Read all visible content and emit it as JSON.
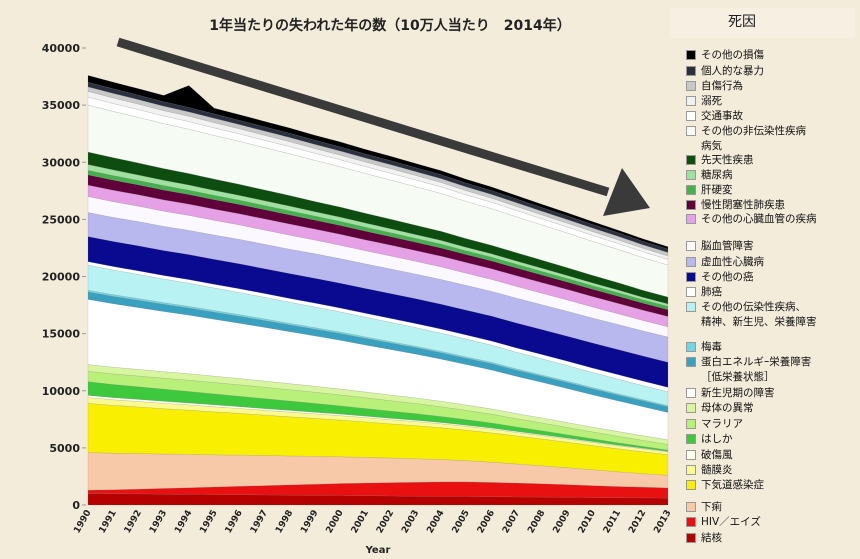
{
  "chart_data": {
    "type": "area",
    "stacked": true,
    "title": "1年当たりの失われた年の数（10万人当たり　2014年）",
    "legend_title": "死因",
    "x_label": "Year",
    "categories": [
      "1990",
      "1991",
      "1992",
      "1993",
      "1994",
      "1995",
      "1996",
      "1997",
      "1998",
      "1999",
      "2000",
      "2001",
      "2002",
      "2003",
      "2004",
      "2005",
      "2006",
      "2007",
      "2008",
      "2009",
      "2010",
      "2011",
      "2012",
      "2013"
    ],
    "ylim": [
      0,
      40000
    ],
    "yticks": [
      0,
      5000,
      10000,
      15000,
      20000,
      25000,
      30000,
      35000,
      40000
    ],
    "grid": false,
    "series": [
      {
        "name": "結核",
        "color": "#b40000",
        "values": [
          1000,
          980,
          970,
          950,
          930,
          910,
          900,
          880,
          860,
          840,
          830,
          810,
          790,
          770,
          760,
          740,
          720,
          700,
          690,
          670,
          650,
          630,
          620,
          600
        ]
      },
      {
        "name": "HIV／エイズ",
        "color": "#e81010",
        "values": [
          300,
          350,
          420,
          500,
          580,
          660,
          740,
          820,
          900,
          980,
          1050,
          1110,
          1170,
          1220,
          1260,
          1280,
          1260,
          1220,
          1170,
          1110,
          1050,
          990,
          940,
          900
        ]
      },
      {
        "name": "下痢",
        "color": "#f7c9a8",
        "values": [
          3300,
          3200,
          3110,
          3010,
          2920,
          2820,
          2730,
          2630,
          2530,
          2440,
          2340,
          2250,
          2150,
          2060,
          1960,
          1860,
          1770,
          1670,
          1580,
          1480,
          1390,
          1290,
          1190,
          1100
        ]
      },
      {
        "name": "下気道感染症",
        "color": "#f8f000",
        "values": [
          4300,
          4190,
          4080,
          3970,
          3870,
          3760,
          3650,
          3540,
          3430,
          3320,
          3210,
          3100,
          2990,
          2890,
          2780,
          2670,
          2560,
          2450,
          2340,
          2230,
          2120,
          2010,
          1910,
          1800
        ]
      },
      {
        "name": "髄膜炎",
        "color": "#fafa90",
        "values": [
          500,
          490,
          480,
          470,
          460,
          450,
          430,
          420,
          410,
          400,
          390,
          380,
          370,
          360,
          350,
          340,
          330,
          310,
          300,
          290,
          280,
          270,
          260,
          250
        ]
      },
      {
        "name": "破傷風",
        "color": "#fffff2",
        "values": [
          200,
          190,
          190,
          180,
          170,
          170,
          160,
          150,
          150,
          140,
          140,
          130,
          120,
          120,
          110,
          100,
          100,
          90,
          80,
          80,
          70,
          60,
          60,
          50
        ]
      },
      {
        "name": "はしか",
        "color": "#3ec83e",
        "values": [
          1200,
          1150,
          1100,
          1060,
          1010,
          960,
          910,
          870,
          820,
          770,
          720,
          670,
          630,
          580,
          530,
          480,
          440,
          390,
          340,
          290,
          240,
          200,
          150,
          100
        ]
      },
      {
        "name": "マラリア",
        "color": "#b8f07a",
        "values": [
          900,
          920,
          940,
          960,
          980,
          990,
          1000,
          1000,
          990,
          980,
          960,
          940,
          910,
          880,
          850,
          810,
          770,
          720,
          680,
          640,
          600,
          570,
          530,
          500
        ]
      },
      {
        "name": "母体の異常",
        "color": "#d8f5a0",
        "values": [
          600,
          590,
          580,
          570,
          570,
          560,
          550,
          540,
          530,
          520,
          510,
          500,
          500,
          490,
          480,
          470,
          460,
          450,
          440,
          430,
          420,
          420,
          410,
          400
        ]
      },
      {
        "name": "新生児期の障害",
        "color": "#ffffff",
        "values": [
          5700,
          5560,
          5410,
          5270,
          5130,
          4980,
          4840,
          4700,
          4550,
          4410,
          4270,
          4120,
          3980,
          3840,
          3690,
          3550,
          3410,
          3260,
          3120,
          2980,
          2830,
          2690,
          2540,
          2400
        ]
      },
      {
        "name": "蛋白エネルギｰ栄養障害\n［低栄養状態］",
        "color": "#3aa0c0",
        "values": [
          650,
          640,
          640,
          630,
          620,
          620,
          610,
          600,
          600,
          590,
          590,
          580,
          570,
          570,
          560,
          550,
          550,
          540,
          530,
          530,
          520,
          510,
          510,
          500
        ]
      },
      {
        "name": "梅毒",
        "color": "#70d8e0",
        "values": [
          150,
          150,
          150,
          140,
          140,
          140,
          140,
          140,
          130,
          130,
          130,
          130,
          120,
          120,
          120,
          120,
          120,
          110,
          110,
          110,
          110,
          100,
          100,
          100
        ]
      },
      {
        "name": "その他の伝染性疾病、\n精神、新生児、栄養障害",
        "color": "#b8f2f2",
        "values": [
          2200,
          2160,
          2110,
          2070,
          2030,
          1980,
          1940,
          1890,
          1850,
          1810,
          1760,
          1720,
          1680,
          1630,
          1590,
          1550,
          1500,
          1460,
          1420,
          1370,
          1330,
          1290,
          1240,
          1200
        ]
      },
      {
        "name": "肺癌",
        "color": "#ffffff",
        "values": [
          300,
          300,
          310,
          310,
          320,
          320,
          330,
          330,
          330,
          340,
          340,
          340,
          350,
          350,
          360,
          360,
          360,
          370,
          370,
          380,
          380,
          390,
          390,
          400
        ]
      },
      {
        "name": "その他の癌",
        "color": "#0a0a90",
        "values": [
          2200,
          2200,
          2200,
          2190,
          2190,
          2190,
          2190,
          2180,
          2180,
          2180,
          2180,
          2180,
          2180,
          2180,
          2180,
          2180,
          2190,
          2190,
          2190,
          2190,
          2200,
          2200,
          2200,
          2200
        ]
      },
      {
        "name": "虚血性心臓病",
        "color": "#b8b8ee",
        "values": [
          2100,
          2100,
          2110,
          2110,
          2120,
          2120,
          2130,
          2130,
          2130,
          2140,
          2140,
          2140,
          2150,
          2150,
          2160,
          2160,
          2160,
          2170,
          2170,
          2180,
          2180,
          2190,
          2190,
          2200
        ]
      },
      {
        "name": "脳血管障害",
        "color": "#fbf8ff",
        "values": [
          1400,
          1380,
          1360,
          1330,
          1310,
          1290,
          1270,
          1250,
          1230,
          1200,
          1180,
          1160,
          1140,
          1120,
          1100,
          1070,
          1050,
          1030,
          1010,
          990,
          970,
          940,
          920,
          900
        ]
      },
      {
        "name": "その他の心臓血管の疾病",
        "color": "#e6a0e6",
        "values": [
          1000,
          1000,
          990,
          990,
          980,
          980,
          970,
          970,
          970,
          960,
          960,
          950,
          950,
          940,
          940,
          930,
          930,
          930,
          920,
          920,
          910,
          910,
          900,
          900
        ]
      },
      {
        "name": "慢性閉塞性肺疾患",
        "color": "#60003a",
        "values": [
          900,
          890,
          870,
          860,
          850,
          830,
          820,
          810,
          800,
          780,
          770,
          760,
          740,
          730,
          720,
          700,
          690,
          680,
          670,
          650,
          640,
          630,
          610,
          600
        ]
      },
      {
        "name": "肝硬変",
        "color": "#46b050",
        "values": [
          400,
          400,
          390,
          390,
          380,
          380,
          370,
          370,
          370,
          360,
          360,
          350,
          350,
          340,
          340,
          330,
          330,
          330,
          320,
          320,
          310,
          310,
          300,
          300
        ]
      },
      {
        "name": "糖尿病",
        "color": "#a0e0a0",
        "values": [
          500,
          490,
          470,
          460,
          450,
          430,
          420,
          410,
          400,
          380,
          370,
          360,
          340,
          330,
          320,
          300,
          290,
          280,
          270,
          250,
          240,
          230,
          210,
          200
        ]
      },
      {
        "name": "先天性疾患",
        "color": "#0d4d10",
        "values": [
          1100,
          1080,
          1060,
          1030,
          1010,
          990,
          970,
          950,
          930,
          900,
          880,
          860,
          840,
          820,
          800,
          770,
          750,
          730,
          710,
          690,
          670,
          640,
          620,
          600
        ]
      },
      {
        "name": "その他の非伝染性疾病\n病気",
        "color": "#f6fbf4",
        "values": [
          4100,
          4040,
          3990,
          3930,
          3870,
          3820,
          3760,
          3700,
          3650,
          3590,
          3530,
          3480,
          3420,
          3370,
          3310,
          3250,
          3200,
          3140,
          3080,
          3030,
          2970,
          2910,
          2860,
          2800
        ]
      },
      {
        "name": "交通事故",
        "color": "#ffffff",
        "values": [
          700,
          690,
          680,
          670,
          670,
          660,
          650,
          640,
          630,
          620,
          610,
          600,
          600,
          590,
          580,
          570,
          560,
          550,
          540,
          530,
          530,
          520,
          510,
          500
        ]
      },
      {
        "name": "溺死",
        "color": "#f2f2f2",
        "values": [
          500,
          490,
          480,
          470,
          470,
          460,
          450,
          440,
          430,
          420,
          410,
          400,
          400,
          390,
          380,
          370,
          360,
          350,
          340,
          330,
          330,
          320,
          310,
          300
        ]
      },
      {
        "name": "自傷行為",
        "color": "#c8c8c8",
        "values": [
          400,
          400,
          390,
          390,
          380,
          380,
          370,
          370,
          370,
          360,
          360,
          350,
          350,
          340,
          340,
          330,
          330,
          330,
          320,
          320,
          310,
          310,
          300,
          300
        ]
      },
      {
        "name": "個人的な暴力",
        "color": "#2a3040",
        "values": [
          400,
          400,
          390,
          390,
          380,
          380,
          370,
          370,
          370,
          360,
          360,
          350,
          350,
          340,
          340,
          330,
          330,
          330,
          320,
          320,
          310,
          310,
          300,
          300
        ]
      },
      {
        "name": "その他の損傷",
        "color": "#000000",
        "values": [
          600,
          580,
          570,
          550,
          1930,
          510,
          500,
          480,
          460,
          440,
          430,
          410,
          390,
          370,
          360,
          340,
          320,
          300,
          290,
          270,
          250,
          230,
          220,
          200
        ]
      }
    ]
  }
}
